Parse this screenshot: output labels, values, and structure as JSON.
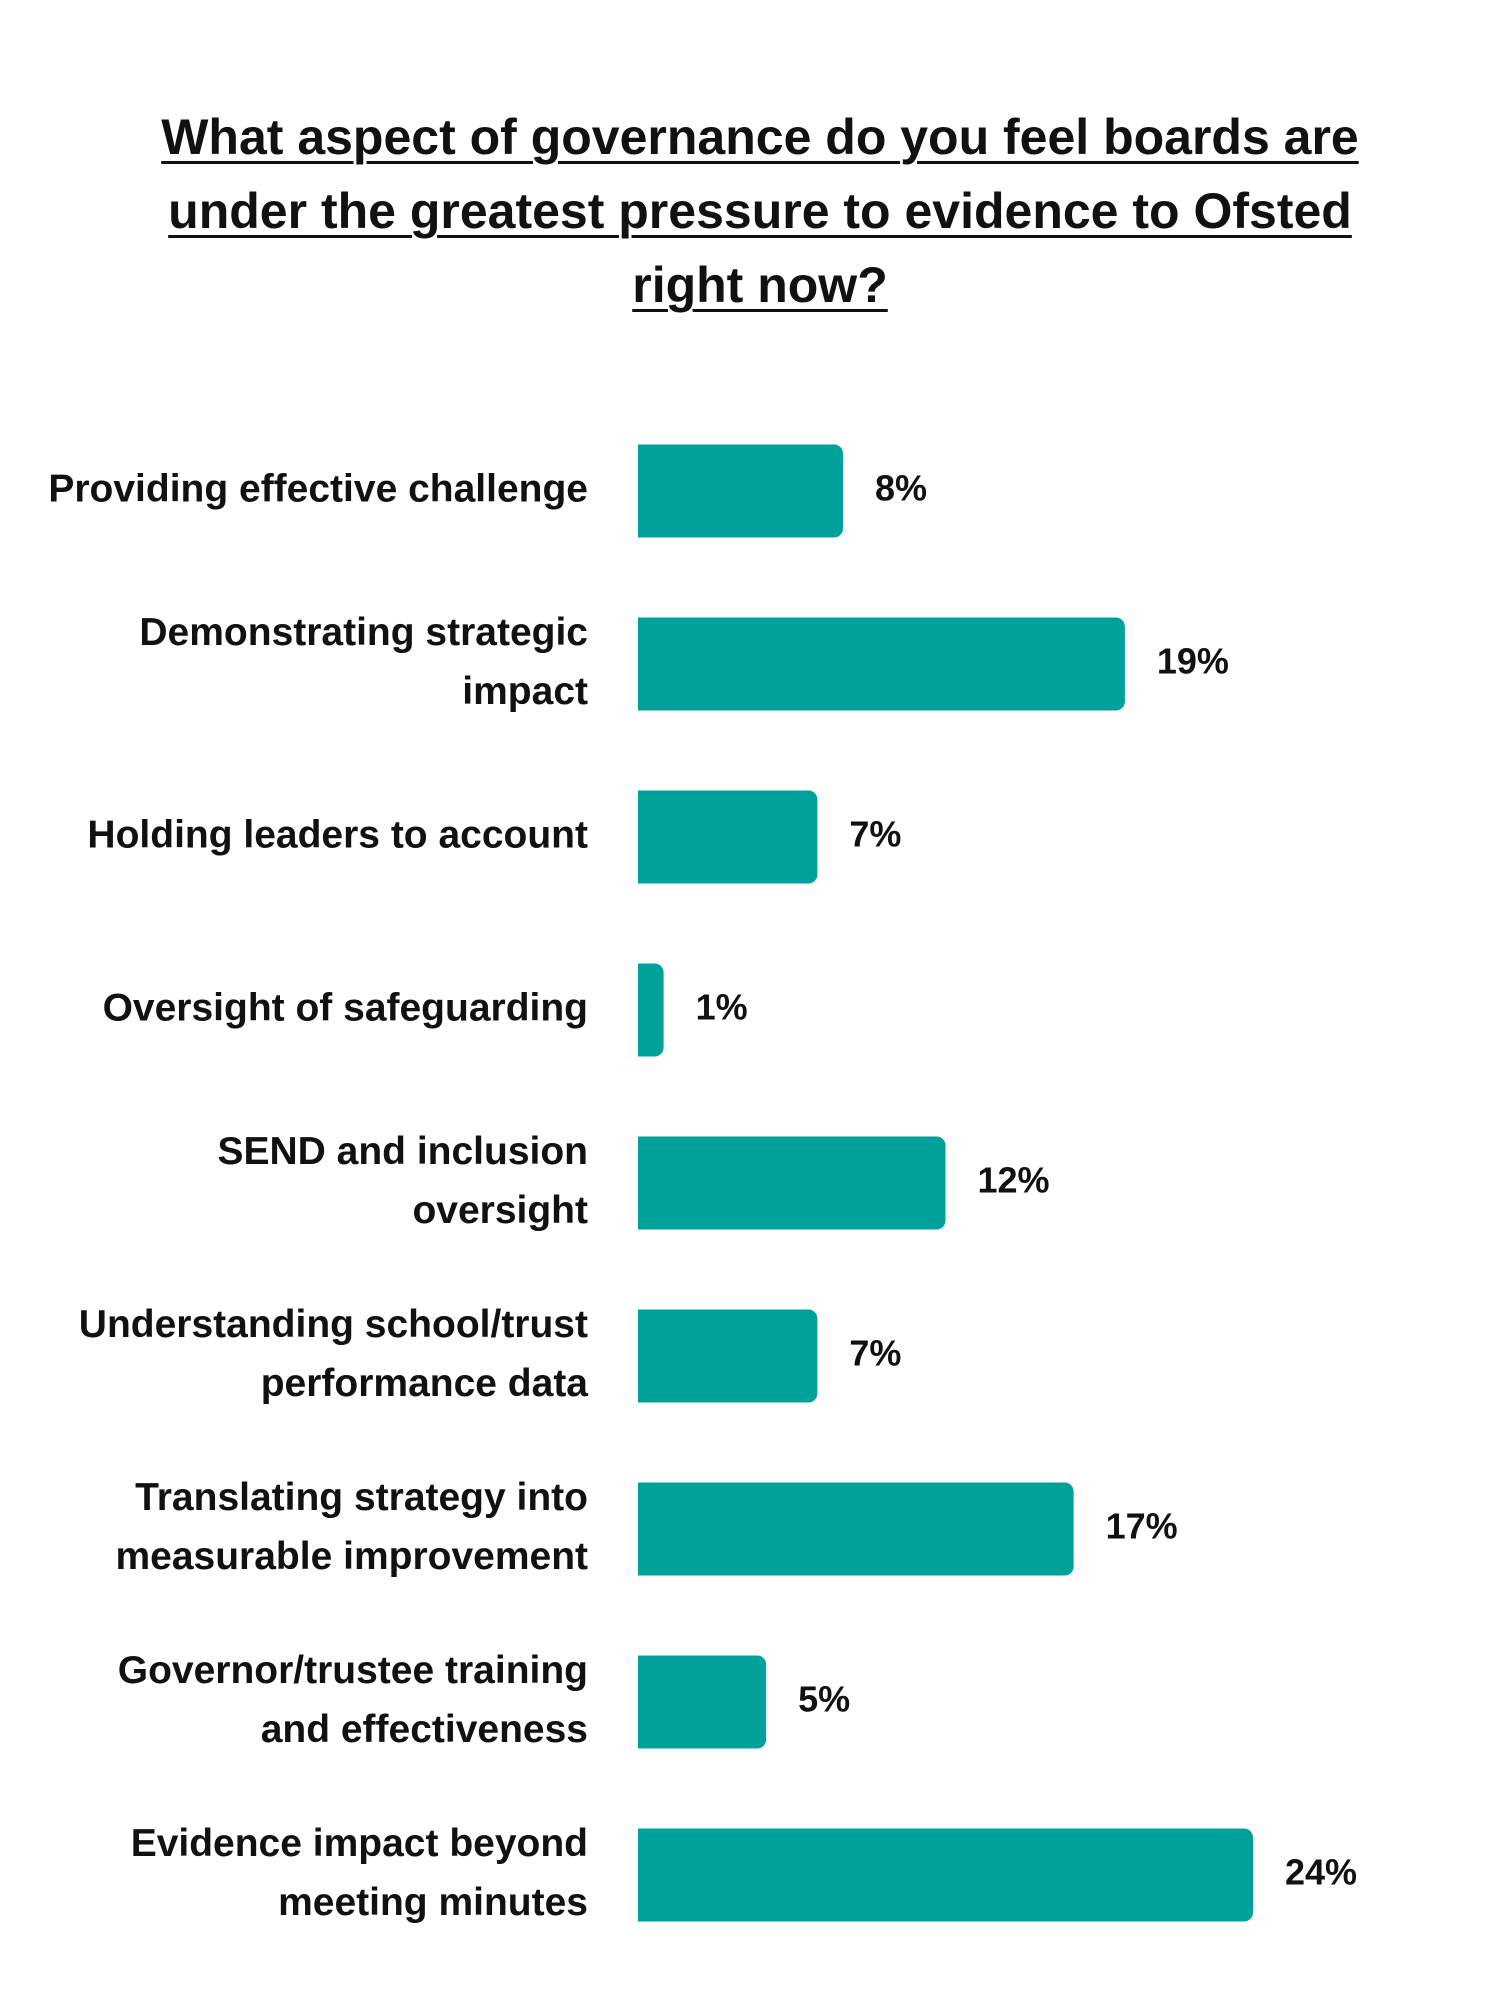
{
  "chart_data": {
    "type": "bar",
    "orientation": "horizontal",
    "title": "What aspect of governance do you feel boards are under the greatest pressure to evidence to Ofsted right now?",
    "categories": [
      [
        "Providing effective challenge"
      ],
      [
        "Demonstrating strategic",
        "impact"
      ],
      [
        "Holding leaders to account"
      ],
      [
        "Oversight of safeguarding"
      ],
      [
        "SEND and inclusion",
        "oversight"
      ],
      [
        "Understanding school/trust",
        "performance data"
      ],
      [
        "Translating strategy into",
        "measurable improvement"
      ],
      [
        "Governor/trustee training",
        "and effectiveness"
      ],
      [
        "Evidence impact beyond",
        "meeting minutes"
      ]
    ],
    "values": [
      8,
      19,
      7,
      1,
      12,
      7,
      17,
      5,
      24
    ],
    "value_labels": [
      "8%",
      "19%",
      "7%",
      "1%",
      "12%",
      "7%",
      "17%",
      "5%",
      "24%"
    ],
    "xlim": [
      0,
      24
    ],
    "bar_color": "#00A19A",
    "grid": false,
    "legend": "none"
  }
}
